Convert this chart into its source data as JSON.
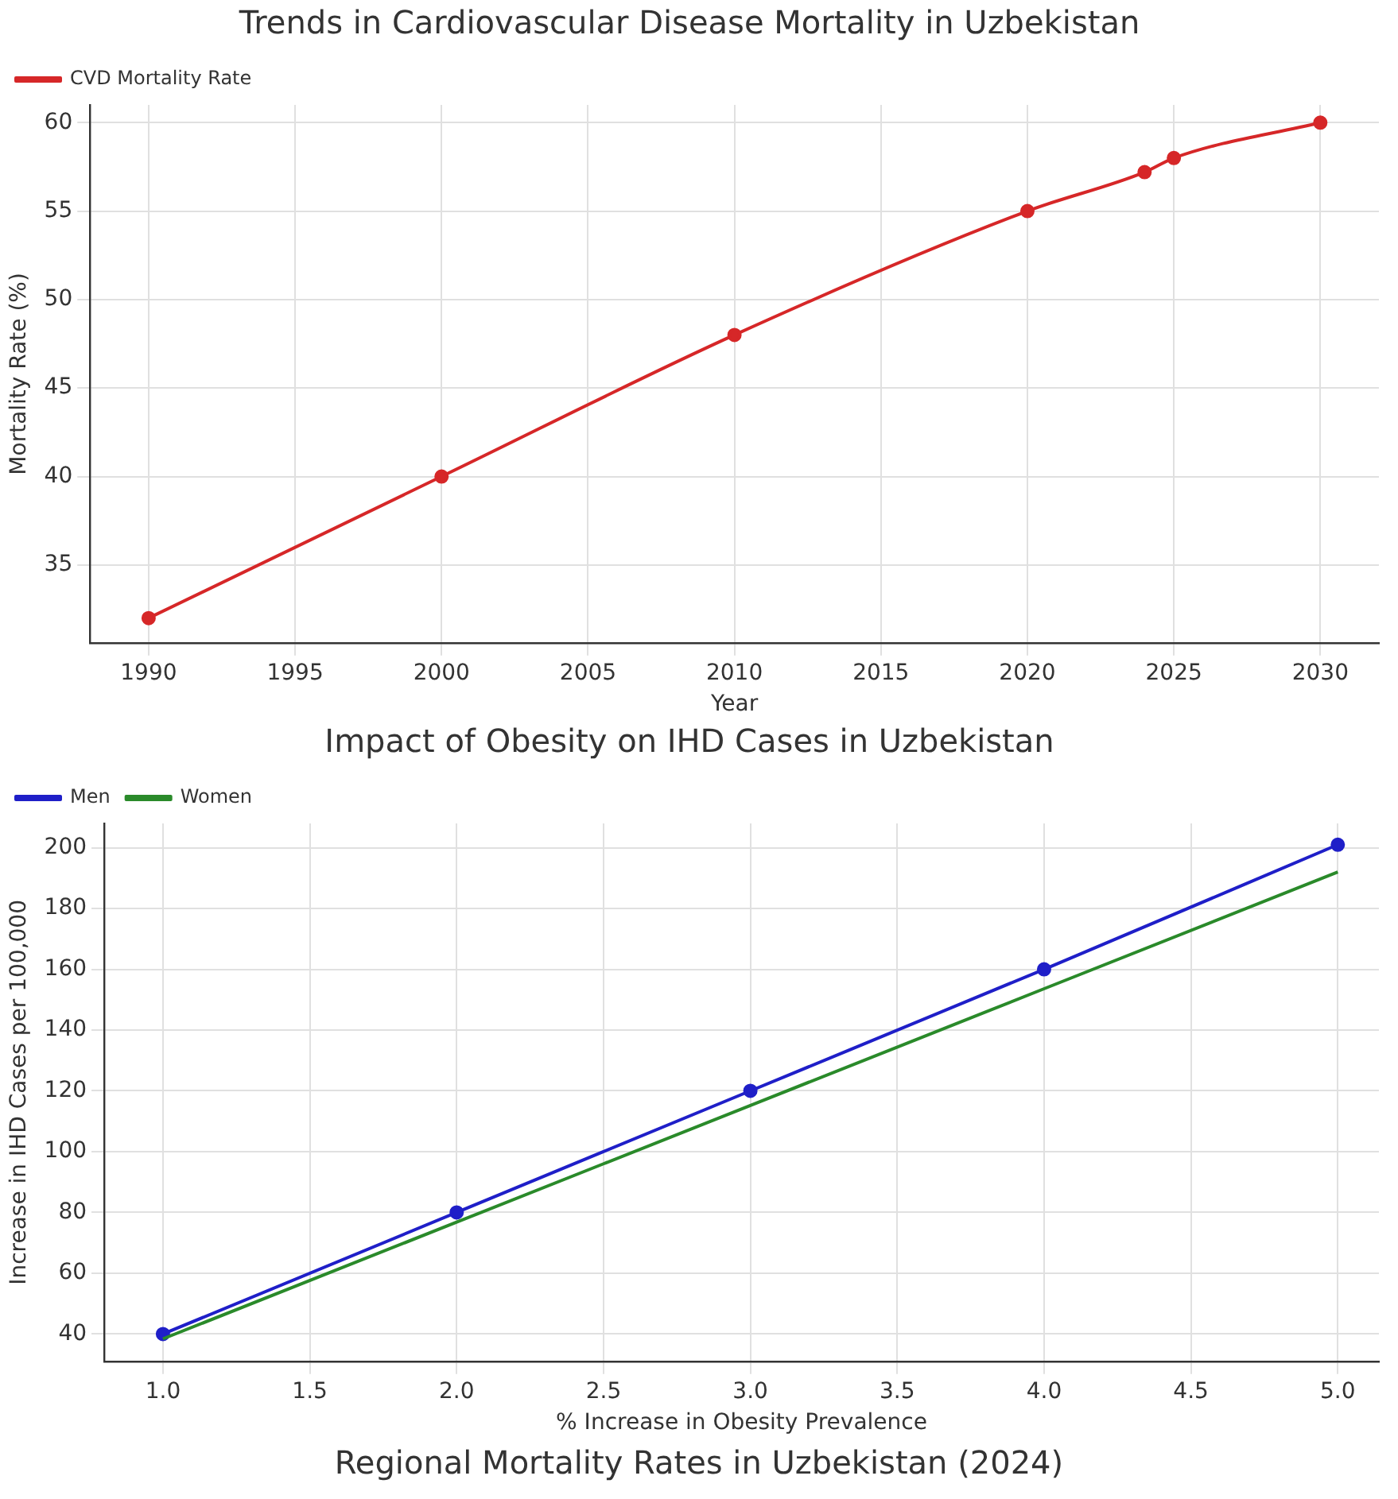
{
  "chart_data": [
    {
      "type": "line",
      "title": "Trends in Cardiovascular Disease Mortality in Uzbekistan",
      "xlabel": "Year",
      "ylabel": "Mortality Rate (%)",
      "x": [
        1990,
        2000,
        2010,
        2020,
        2024,
        2025,
        2030
      ],
      "series": [
        {
          "name": "CVD Mortality Rate",
          "color": "#d62728",
          "values": [
            32,
            40,
            48,
            55,
            57.2,
            58,
            60
          ]
        }
      ],
      "xlim": [
        1988,
        2032
      ],
      "xticks": [
        1990,
        1995,
        2000,
        2005,
        2010,
        2015,
        2020,
        2025,
        2030
      ],
      "ylim": [
        30.6,
        61
      ],
      "yticks": [
        35,
        40,
        45,
        50,
        55,
        60
      ],
      "grid": true,
      "legend": "top left",
      "marker": "circle"
    },
    {
      "type": "line",
      "title": "Impact of Obesity on IHD Cases in Uzbekistan",
      "xlabel": "% Increase in Obesity Prevalence",
      "ylabel": "Increase in IHD Cases per 100,000",
      "x": [
        1,
        2,
        3,
        4,
        5
      ],
      "series": [
        {
          "name": "Men",
          "color": "#1f1fc8",
          "values": [
            40,
            80,
            120,
            160,
            201
          ],
          "marker": "circle"
        },
        {
          "name": "Women",
          "color": "#2a8a2a",
          "values": [
            38.4,
            76.8,
            115.2,
            153.6,
            192
          ],
          "marker": "none"
        }
      ],
      "xlim": [
        0.8,
        5.14
      ],
      "xticks": [
        {
          "value": 1,
          "label": "1.0"
        },
        {
          "value": 1.5,
          "label": "1.5"
        },
        {
          "value": 2,
          "label": "2.0"
        },
        {
          "value": 2.5,
          "label": "2.5"
        },
        {
          "value": 3,
          "label": "3.0"
        },
        {
          "value": 3.5,
          "label": "3.5"
        },
        {
          "value": 4,
          "label": "4.0"
        },
        {
          "value": 4.5,
          "label": "4.5"
        },
        {
          "value": 5,
          "label": "5.0"
        }
      ],
      "ylim": [
        31,
        208
      ],
      "yticks": [
        40,
        60,
        80,
        100,
        120,
        140,
        160,
        180,
        200
      ],
      "grid": true,
      "legend": "top left"
    },
    {
      "type": "other",
      "title": "Regional Mortality Rates in Uzbekistan (2024)"
    }
  ]
}
